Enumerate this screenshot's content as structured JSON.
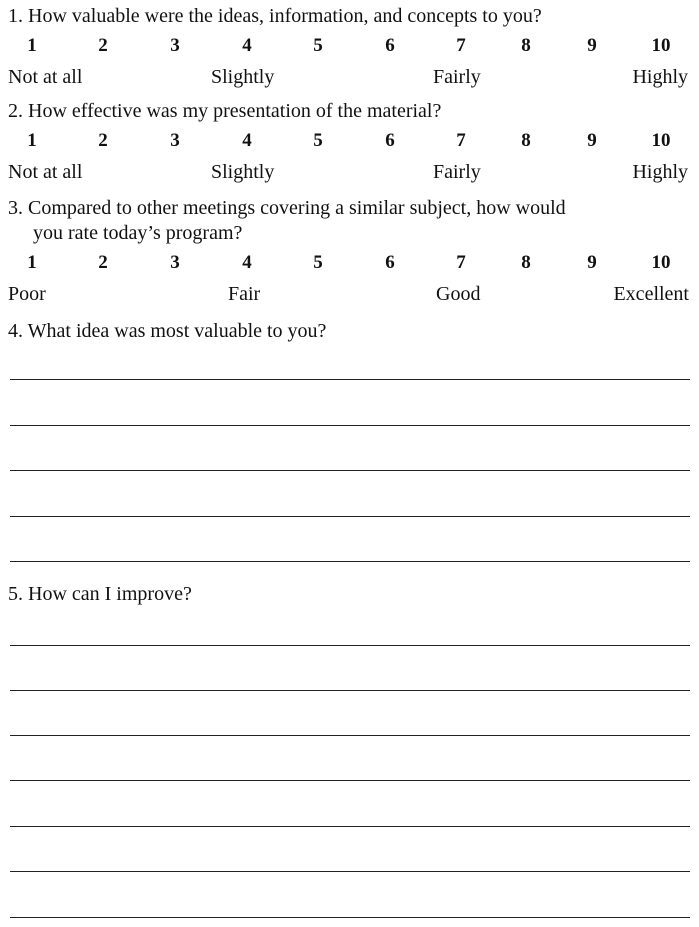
{
  "scale_numbers": [
    "1",
    "2",
    "3",
    "4",
    "5",
    "6",
    "7",
    "8",
    "9",
    "10"
  ],
  "questions": [
    {
      "text": "1. How valuable were the ideas, information, and concepts to you?",
      "anchors": [
        "Not at all",
        "Slightly",
        "Fairly",
        "Highly"
      ]
    },
    {
      "text": "2. How effective was my presentation of the material?",
      "anchors": [
        "Not at all",
        "Slightly",
        "Fairly",
        "Highly"
      ]
    },
    {
      "text": "3. Compared to other meetings covering a similar subject, how would",
      "text_cont": "you rate today’s program?",
      "anchors": [
        "Poor",
        "Fair",
        "Good",
        "Excellent"
      ]
    },
    {
      "text": "4. What idea was most valuable to you?"
    },
    {
      "text": "5. How can I improve?"
    }
  ]
}
